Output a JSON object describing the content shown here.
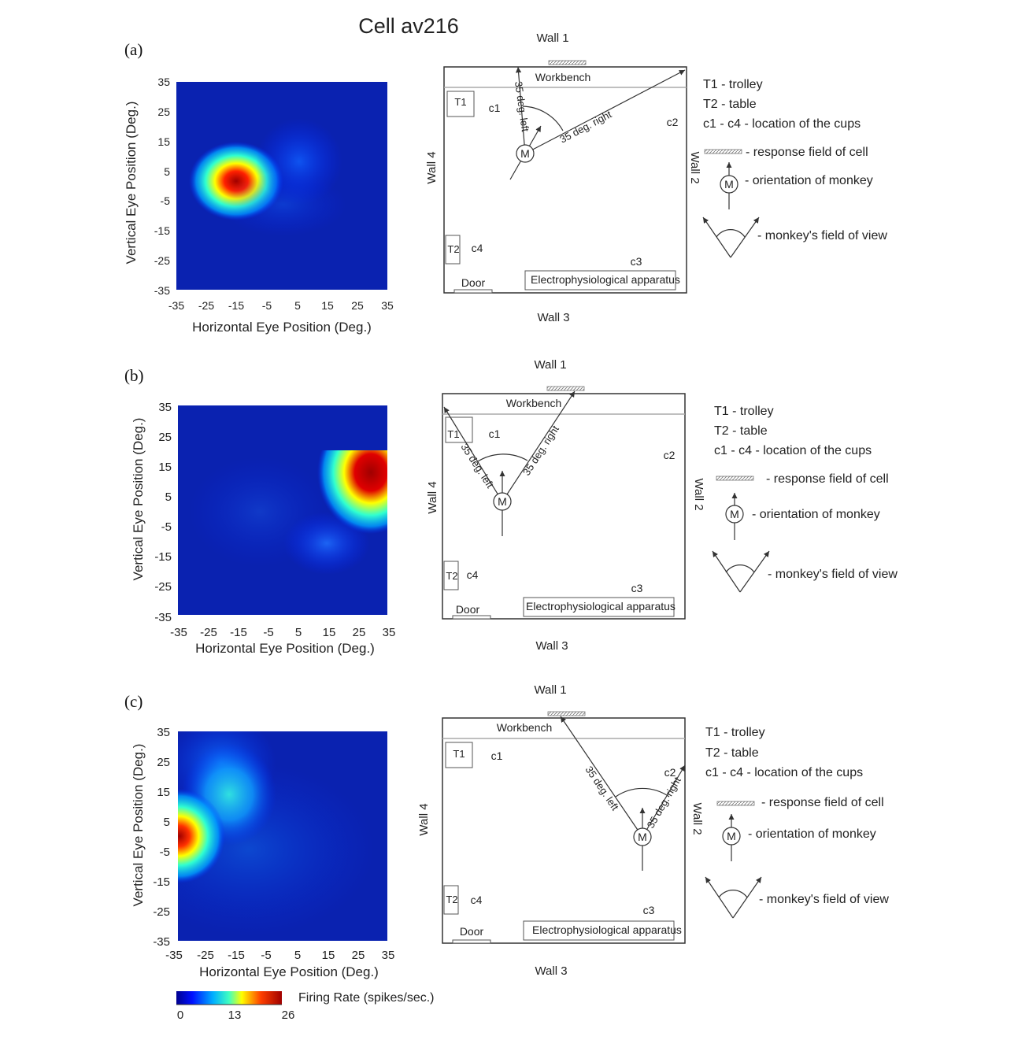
{
  "title": "Cell av216",
  "colorbar": {
    "label": "Firing Rate (spikes/sec.)",
    "ticks": [
      "0",
      "13",
      "26"
    ]
  },
  "colors": {
    "low": "#0a1fa3",
    "high": "#a00010"
  },
  "panels": [
    {
      "label": "(a)",
      "heatmap": {
        "xlabel": "Horizontal Eye Position (Deg.)",
        "ylabel": "Vertical Eye Position (Deg.)",
        "xticks": [
          "-35",
          "-25",
          "-15",
          "-5",
          "5",
          "15",
          "25",
          "35"
        ],
        "yticks": [
          "35",
          "25",
          "15",
          "5",
          "-5",
          "-15",
          "-25",
          "-35"
        ]
      },
      "room": {
        "wall_top": "Wall 1",
        "wall_bottom": "Wall 3",
        "wall_left": "Wall 4",
        "wall_right": "Wall 2",
        "workbench": "Workbench",
        "apparatus": "Electrophysiological apparatus",
        "door": "Door",
        "t1": "T1",
        "t2": "T2",
        "c1": "c1",
        "c2": "c2",
        "c3": "c3",
        "c4": "c4",
        "monkey": "M",
        "angle_left": "35 deg. left",
        "angle_right": "35 deg. right"
      },
      "legend": {
        "t1": "T1 - trolley",
        "t2": "T2 - table",
        "cups": "c1 - c4 - location of the cups",
        "response": "- response field of cell",
        "orientation": "- orientation of monkey",
        "monkey": "M",
        "fov": "- monkey's field of view"
      }
    },
    {
      "label": "(b)",
      "heatmap": {
        "xlabel": "Horizontal Eye Position (Deg.)",
        "ylabel": "Vertical Eye Position (Deg.)",
        "xticks": [
          "-35",
          "-25",
          "-15",
          "-5",
          "5",
          "15",
          "25",
          "35"
        ],
        "yticks": [
          "35",
          "25",
          "15",
          "5",
          "-5",
          "-15",
          "-25",
          "-35"
        ]
      },
      "room": {
        "wall_top": "Wall 1",
        "wall_bottom": "Wall 3",
        "wall_left": "Wall 4",
        "wall_right": "Wall 2",
        "workbench": "Workbench",
        "apparatus": "Electrophysiological apparatus",
        "door": "Door",
        "t1": "T1",
        "t2": "T2",
        "c1": "c1",
        "c2": "c2",
        "c3": "c3",
        "c4": "c4",
        "monkey": "M",
        "angle_left": "35 deg. left",
        "angle_right": "35 deg. right"
      },
      "legend": {
        "t1": "T1 - trolley",
        "t2": "T2 - table",
        "cups": "c1 - c4 - location of the cups",
        "response": "- response field of cell",
        "orientation": "- orientation of monkey",
        "monkey": "M",
        "fov": "- monkey's field of view"
      }
    },
    {
      "label": "(c)",
      "heatmap": {
        "xlabel": "Horizontal Eye Position (Deg.)",
        "ylabel": "Vertical Eye Position (Deg.)",
        "xticks": [
          "-35",
          "-25",
          "-15",
          "-5",
          "5",
          "15",
          "25",
          "35"
        ],
        "yticks": [
          "35",
          "25",
          "15",
          "5",
          "-5",
          "-15",
          "-25",
          "-35"
        ]
      },
      "room": {
        "wall_top": "Wall 1",
        "wall_bottom": "Wall 3",
        "wall_left": "Wall 4",
        "wall_right": "Wall 2",
        "workbench": "Workbench",
        "apparatus": "Electrophysiological apparatus",
        "door": "Door",
        "t1": "T1",
        "t2": "T2",
        "c1": "c1",
        "c2": "c2",
        "c3": "c3",
        "c4": "c4",
        "monkey": "M",
        "angle_left": "35 deg. left",
        "angle_right": "35 deg. right"
      },
      "legend": {
        "t1": "T1 - trolley",
        "t2": "T2 - table",
        "cups": "c1 - c4 - location of the cups",
        "response": "- response field of cell",
        "orientation": "- orientation of monkey",
        "monkey": "M",
        "fov": "- monkey's field of view"
      }
    }
  ]
}
